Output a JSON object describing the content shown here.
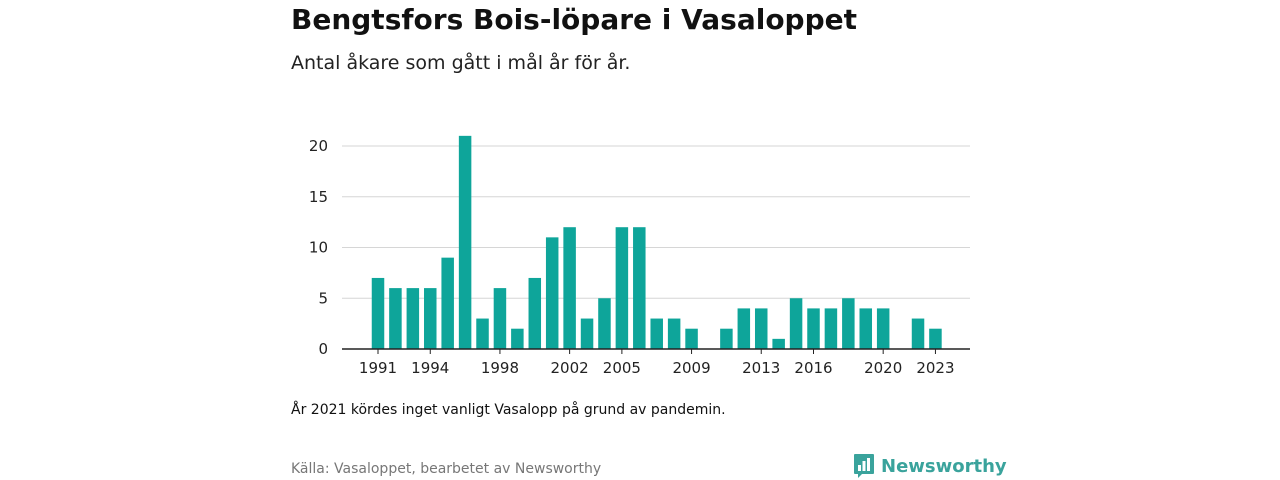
{
  "header": {
    "title": "Bengtsfors Bois-löpare i Vasaloppet",
    "subtitle": "Antal åkare som gått i mål år för år."
  },
  "footer": {
    "note": "År 2021 kördes inget vanligt Vasalopp på grund av pandemin.",
    "source": "Källa: Vasaloppet, bearbetet av Newsworthy",
    "logo_text": "Newsworthy",
    "logo_icon": "newsworthy-bar-chart-icon"
  },
  "colors": {
    "bar": "#0ea59a",
    "grid": "#d6d6d6",
    "axis": "#222222",
    "logo": "#3aa39c"
  },
  "chart_data": {
    "type": "bar",
    "title": "Bengtsfors Bois-löpare i Vasaloppet",
    "subtitle": "Antal åkare som gått i mål år för år.",
    "xlabel": "",
    "ylabel": "",
    "x_tick_labels": [
      "1991",
      "1994",
      "1998",
      "2002",
      "2005",
      "2009",
      "2013",
      "2016",
      "2020",
      "2023"
    ],
    "y_ticks": [
      0,
      5,
      10,
      15,
      20
    ],
    "ylim": [
      0,
      22
    ],
    "grid": true,
    "legend": "none",
    "categories": [
      1991,
      1992,
      1993,
      1994,
      1995,
      1996,
      1997,
      1998,
      1999,
      2000,
      2001,
      2002,
      2003,
      2004,
      2005,
      2006,
      2007,
      2008,
      2009,
      2010,
      2011,
      2012,
      2013,
      2014,
      2015,
      2016,
      2017,
      2018,
      2019,
      2020,
      2021,
      2022,
      2023
    ],
    "values": [
      7,
      6,
      6,
      6,
      9,
      21,
      3,
      6,
      2,
      7,
      11,
      12,
      3,
      5,
      12,
      12,
      3,
      3,
      2,
      0,
      2,
      4,
      4,
      1,
      5,
      4,
      4,
      5,
      4,
      4,
      0,
      3,
      2
    ]
  }
}
